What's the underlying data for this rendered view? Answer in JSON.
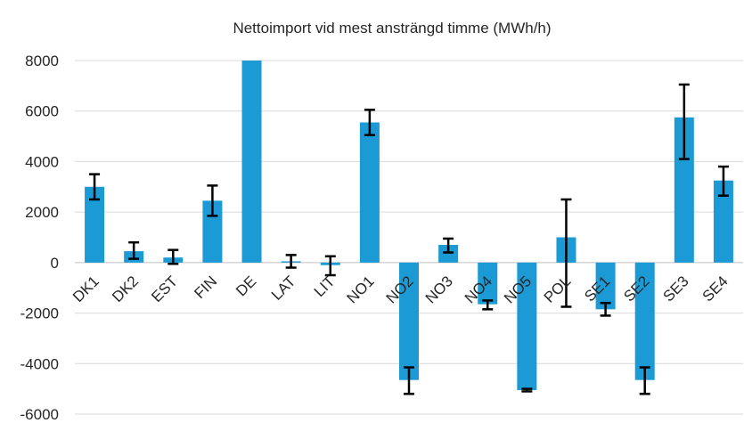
{
  "chart_data": {
    "type": "bar",
    "title": "Nettoimport vid mest ansträngd timme  (MWh/h)",
    "xlabel": "",
    "ylabel": "",
    "ylim": [
      -6000,
      8000
    ],
    "yticks": [
      8000,
      6000,
      4000,
      2000,
      0,
      -2000,
      -4000,
      -6000
    ],
    "ytick_labels": [
      "8000",
      "6000",
      "4000",
      "2000",
      "0",
      "-2000",
      "-4000",
      "-6000"
    ],
    "grid": true,
    "legend": "none",
    "bar_color": "#1b9ad6",
    "error_bar_color": "#000000",
    "categories": [
      "DK1",
      "DK2",
      "EST",
      "FIN",
      "DE",
      "LAT",
      "LIT",
      "NO1",
      "NO2",
      "NO3",
      "NO4",
      "NO5",
      "POL",
      "SE1",
      "SE2",
      "SE3",
      "SE4"
    ],
    "values": [
      3000,
      450,
      200,
      2450,
      8000,
      50,
      -100,
      5550,
      -4650,
      700,
      -1650,
      -5050,
      1000,
      -1850,
      -4650,
      5750,
      3250
    ],
    "error_low": [
      2500,
      150,
      -50,
      1850,
      null,
      -200,
      -500,
      5050,
      -5200,
      400,
      -1850,
      -5100,
      -1750,
      -2100,
      -5200,
      4100,
      2650
    ],
    "error_high": [
      3500,
      800,
      500,
      3050,
      null,
      300,
      250,
      6050,
      -4150,
      950,
      -1500,
      -5000,
      2500,
      -1600,
      -4150,
      7050,
      3800
    ]
  }
}
